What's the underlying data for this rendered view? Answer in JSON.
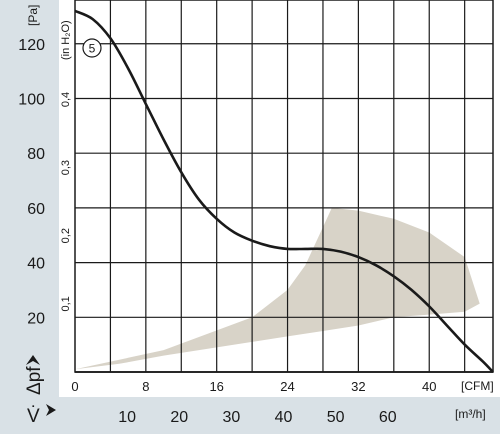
{
  "chart_data": {
    "type": "line",
    "curve_id": "5",
    "y_axis": {
      "unit": "[Pa]",
      "range": [
        0,
        136
      ],
      "ticks": [
        20,
        40,
        60,
        80,
        100,
        120
      ],
      "symbol": "Δpf"
    },
    "y_axis_secondary": {
      "unit": "(in H₂O)",
      "tick_values": [
        0.1,
        0.2,
        0.3,
        0.4
      ],
      "tick_labels": [
        "0,1",
        "0,2",
        "0,3",
        "0,4"
      ],
      "pa_per_unit": 249.09
    },
    "x_axis": {
      "unit": "[CFM]",
      "range": [
        0,
        47.2
      ],
      "ticks": [
        0,
        8,
        16,
        24,
        32,
        40
      ],
      "symbol": "V̇"
    },
    "x_axis_secondary": {
      "unit": "[m³/h]",
      "ticks": [
        10,
        20,
        30,
        40,
        50,
        60
      ],
      "cfm_per_unit": 0.5886
    },
    "series": [
      {
        "x": [
          0,
          2,
          4,
          6,
          8,
          10,
          12,
          14,
          16,
          18,
          20,
          22,
          24,
          26,
          28,
          30,
          32,
          34,
          36,
          38,
          40,
          42,
          44,
          46,
          47.2
        ],
        "y": [
          132,
          129,
          122,
          111,
          98,
          85,
          73,
          63,
          56,
          51,
          48,
          46,
          45,
          45,
          45,
          44,
          42,
          39,
          35,
          30,
          24,
          17,
          10,
          4,
          0
        ]
      }
    ],
    "operating_region": {
      "x": [
        0,
        10,
        20,
        24,
        26,
        28,
        29,
        32,
        36,
        40,
        44,
        45.7,
        44,
        40,
        36,
        32,
        28,
        24,
        20,
        16,
        10,
        5,
        0
      ],
      "y": [
        1,
        8,
        20,
        30,
        39,
        53,
        60,
        59,
        56,
        51,
        42,
        25,
        22,
        21,
        20,
        17,
        15,
        13,
        11,
        9,
        6,
        3,
        1
      ]
    },
    "colors": {
      "curve": "#1a1a1a",
      "region": "#d8d3c8",
      "y_band": "#d9e1e6",
      "x_band": "#d9e1e6",
      "grid": "#1a1a1a"
    },
    "grid": true
  }
}
